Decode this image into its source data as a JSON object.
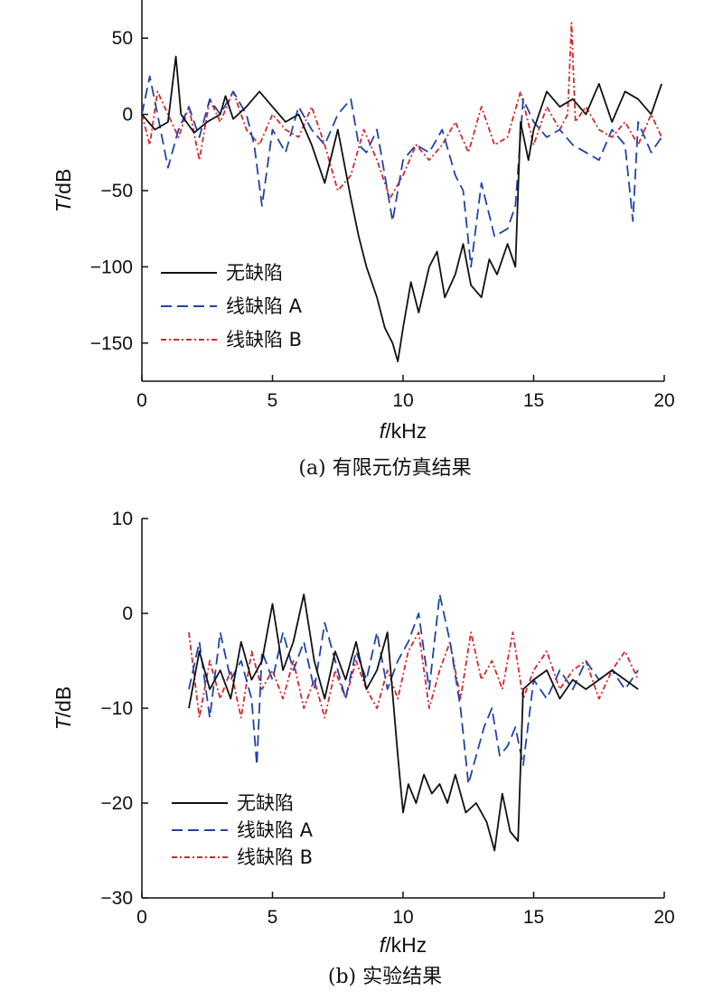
{
  "chart_data": [
    {
      "type": "line",
      "caption": "(a) 有限元仿真结果",
      "xlabel_italic": "f",
      "xlabel_unit": "/kHz",
      "ylabel_italic": "T",
      "ylabel_unit": "/dB",
      "xlim": [
        0,
        20
      ],
      "ylim": [
        -175,
        75
      ],
      "xticks": [
        0,
        5,
        10,
        15,
        20
      ],
      "yticks": [
        50,
        0,
        -50,
        -100,
        -150
      ],
      "legend_position": "bottom-left",
      "series": [
        {
          "name": "无缺陷",
          "color": "#111111",
          "dash": "solid",
          "x": [
            0,
            0.5,
            1.0,
            1.3,
            1.5,
            2.0,
            2.5,
            3.0,
            3.2,
            3.5,
            4.0,
            4.5,
            5.0,
            5.5,
            6.0,
            6.5,
            7.0,
            7.5,
            8.0,
            8.3,
            8.6,
            9.0,
            9.3,
            9.6,
            9.8,
            10.0,
            10.3,
            10.6,
            11.0,
            11.3,
            11.6,
            12.0,
            12.3,
            12.6,
            13.0,
            13.3,
            13.6,
            14.0,
            14.3,
            14.5,
            14.8,
            15.0,
            15.5,
            16.0,
            16.5,
            17.0,
            17.5,
            18.0,
            18.5,
            19.0,
            19.5,
            19.9
          ],
          "values": [
            0,
            -10,
            -5,
            38,
            0,
            -12,
            -5,
            0,
            12,
            -3,
            5,
            15,
            5,
            -5,
            0,
            -20,
            -45,
            -10,
            -55,
            -80,
            -100,
            -120,
            -140,
            -150,
            -162,
            -140,
            -110,
            -130,
            -100,
            -90,
            -120,
            -105,
            -85,
            -112,
            -120,
            -95,
            -105,
            -85,
            -100,
            -5,
            -30,
            -10,
            15,
            5,
            10,
            0,
            20,
            -5,
            15,
            10,
            0,
            20
          ]
        },
        {
          "name": "线缺陷 A",
          "color": "#1f44a8",
          "dash": "dashed",
          "x": [
            0,
            0.3,
            0.6,
            1.0,
            1.4,
            1.8,
            2.2,
            2.6,
            3.0,
            3.5,
            4.0,
            4.3,
            4.6,
            5.0,
            5.5,
            6.0,
            6.5,
            7.0,
            7.5,
            8.0,
            8.3,
            8.6,
            9.0,
            9.3,
            9.6,
            10.0,
            10.5,
            11.0,
            11.5,
            12.0,
            12.3,
            12.6,
            13.0,
            13.5,
            14.0,
            14.3,
            14.6,
            15.0,
            15.5,
            16.0,
            16.5,
            17.0,
            17.5,
            18.0,
            18.5,
            18.8,
            19.0,
            19.5,
            19.9
          ],
          "values": [
            0,
            25,
            0,
            -35,
            -10,
            5,
            -15,
            10,
            0,
            15,
            0,
            -20,
            -60,
            -10,
            -25,
            5,
            -10,
            -20,
            0,
            10,
            -20,
            -25,
            -10,
            -40,
            -70,
            -30,
            -20,
            -25,
            -10,
            -40,
            -50,
            -100,
            -45,
            -80,
            -75,
            -60,
            10,
            -5,
            -15,
            -10,
            -20,
            -25,
            -30,
            -10,
            -20,
            -70,
            -5,
            -25,
            -15
          ]
        },
        {
          "name": "线缺陷 B",
          "color": "#d62728",
          "dash": "dashdot",
          "x": [
            0,
            0.3,
            0.6,
            1.0,
            1.4,
            1.8,
            2.2,
            2.6,
            3.0,
            3.5,
            4.0,
            4.5,
            5.0,
            5.5,
            6.0,
            6.5,
            7.0,
            7.5,
            8.0,
            8.5,
            9.0,
            9.5,
            10.0,
            10.5,
            11.0,
            11.5,
            12.0,
            12.5,
            13.0,
            13.5,
            14.0,
            14.5,
            15.0,
            15.5,
            16.0,
            16.3,
            16.45,
            16.6,
            17.0,
            17.5,
            18.0,
            18.5,
            19.0,
            19.5,
            19.9
          ],
          "values": [
            0,
            -20,
            15,
            0,
            -15,
            5,
            -30,
            10,
            -5,
            15,
            -10,
            -20,
            0,
            -10,
            -15,
            5,
            -20,
            -50,
            -40,
            -10,
            -30,
            -55,
            -40,
            -20,
            -30,
            -20,
            -5,
            -25,
            5,
            -20,
            -15,
            15,
            -20,
            5,
            -10,
            0,
            60,
            -5,
            5,
            -10,
            -15,
            -5,
            -20,
            0,
            -15
          ]
        }
      ]
    },
    {
      "type": "line",
      "caption": "(b) 实验结果",
      "xlabel_italic": "f",
      "xlabel_unit": "/kHz",
      "ylabel_italic": "T",
      "ylabel_unit": "/dB",
      "xlim": [
        0,
        20
      ],
      "ylim": [
        -30,
        10
      ],
      "xticks": [
        0,
        5,
        10,
        15,
        20
      ],
      "yticks": [
        10,
        0,
        -10,
        -20,
        -30
      ],
      "legend_position": "bottom-left",
      "series": [
        {
          "name": "无缺陷",
          "color": "#111111",
          "dash": "solid",
          "x": [
            1.8,
            2.2,
            2.6,
            3.0,
            3.4,
            3.8,
            4.2,
            4.6,
            5.0,
            5.4,
            5.8,
            6.2,
            6.6,
            7.0,
            7.4,
            7.8,
            8.2,
            8.6,
            9.0,
            9.4,
            9.8,
            10.0,
            10.2,
            10.5,
            10.8,
            11.1,
            11.4,
            11.7,
            12.0,
            12.4,
            12.8,
            13.2,
            13.5,
            13.8,
            14.1,
            14.4,
            14.6,
            15.0,
            15.5,
            16.0,
            16.5,
            17.0,
            17.5,
            18.0,
            18.5,
            19.0
          ],
          "values": [
            -10,
            -4,
            -8,
            -6,
            -9,
            -3,
            -7,
            -5,
            1,
            -6,
            -3,
            2,
            -5,
            -9,
            -4,
            -7,
            -3,
            -8,
            -6,
            -2,
            -15,
            -21,
            -18,
            -20,
            -17,
            -19,
            -18,
            -20,
            -17,
            -21,
            -20,
            -22,
            -25,
            -19,
            -23,
            -24,
            -8,
            -7,
            -6,
            -9,
            -7,
            -8,
            -7,
            -6,
            -7,
            -8
          ]
        },
        {
          "name": "线缺陷 A",
          "color": "#1f44a8",
          "dash": "dashed",
          "x": [
            1.8,
            2.2,
            2.6,
            3.0,
            3.4,
            3.8,
            4.2,
            4.4,
            4.6,
            5.0,
            5.4,
            5.8,
            6.2,
            6.6,
            7.0,
            7.4,
            7.8,
            8.2,
            8.6,
            9.0,
            9.4,
            9.8,
            10.2,
            10.6,
            11.0,
            11.4,
            11.8,
            12.2,
            12.5,
            12.8,
            13.1,
            13.4,
            13.7,
            14.0,
            14.3,
            14.6,
            15.0,
            15.5,
            16.0,
            16.5,
            17.0,
            17.5,
            18.0,
            18.5,
            19.0
          ],
          "values": [
            -8,
            -3,
            -11,
            -2,
            -7,
            -5,
            -9,
            -16,
            -4,
            -7,
            -2,
            -6,
            -3,
            -8,
            -1,
            -5,
            -9,
            -4,
            -7,
            -2,
            -8,
            -5,
            -3,
            0,
            -8,
            2,
            -3,
            -10,
            -18,
            -15,
            -12,
            -10,
            -15,
            -14,
            -12,
            -16,
            -7,
            -9,
            -6,
            -8,
            -5,
            -7,
            -6,
            -8,
            -6
          ]
        },
        {
          "name": "线缺陷 B",
          "color": "#d62728",
          "dash": "dashdot",
          "x": [
            1.8,
            2.2,
            2.6,
            3.0,
            3.4,
            3.8,
            4.2,
            4.6,
            5.0,
            5.4,
            5.8,
            6.2,
            6.6,
            7.0,
            7.4,
            7.8,
            8.2,
            8.6,
            9.0,
            9.4,
            9.8,
            10.2,
            10.6,
            11.0,
            11.4,
            11.8,
            12.2,
            12.6,
            13.0,
            13.4,
            13.8,
            14.2,
            14.6,
            15.0,
            15.5,
            16.0,
            16.5,
            17.0,
            17.5,
            18.0,
            18.5,
            19.0
          ],
          "values": [
            -2,
            -11,
            -5,
            -9,
            -6,
            -11,
            -4,
            -8,
            -6,
            -9,
            -5,
            -10,
            -7,
            -11,
            -6,
            -9,
            -5,
            -8,
            -10,
            -6,
            -9,
            -4,
            -2,
            -10,
            -6,
            -3,
            -9,
            -2,
            -7,
            -5,
            -8,
            -2,
            -9,
            -6,
            -4,
            -8,
            -6,
            -5,
            -9,
            -6,
            -4,
            -7
          ]
        }
      ]
    }
  ]
}
